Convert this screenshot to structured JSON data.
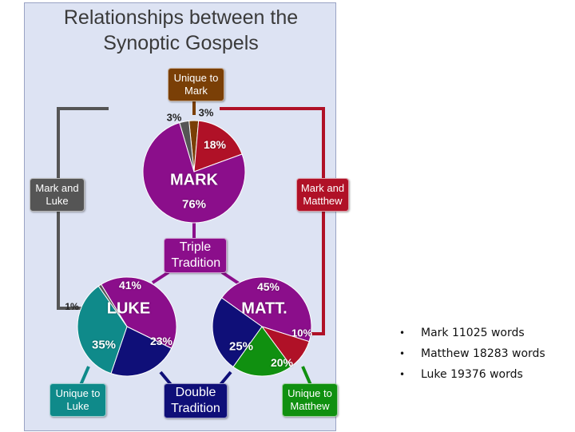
{
  "diagram": {
    "title_line1": "Relationships between the",
    "title_line2": "Synoptic Gospels",
    "colors": {
      "mark": "#8b0e8b",
      "mark_unique": "#7a3f06",
      "mark_luke": "#555555",
      "mark_matthew": "#b01127",
      "double": "#0f0f78",
      "luke_unique": "#0f8a8a",
      "matthew_unique": "#109010"
    },
    "boxes": {
      "unique_mark": "Unique to Mark",
      "mark_and_luke": "Mark and Luke",
      "mark_and_matthew": "Mark and Matthew",
      "triple_tradition": "Triple Tradition",
      "double_tradition": "Double Tradition",
      "unique_luke": "Unique to Luke",
      "unique_matthew": "Unique to Matthew"
    },
    "pies": {
      "mark": {
        "name": "MARK",
        "slices": [
          {
            "label": "3%",
            "value": 3,
            "kind": "mark_unique"
          },
          {
            "label": "18%",
            "value": 18,
            "kind": "mark_matthew"
          },
          {
            "label": "76%",
            "value": 76,
            "kind": "mark"
          },
          {
            "label": "3%",
            "value": 3,
            "kind": "mark_luke"
          }
        ]
      },
      "luke": {
        "name": "LUKE",
        "slices": [
          {
            "label": "41%",
            "value": 41,
            "kind": "mark"
          },
          {
            "label": "23%",
            "value": 23,
            "kind": "double"
          },
          {
            "label": "35%",
            "value": 35,
            "kind": "luke_unique"
          },
          {
            "label": "1%",
            "value": 1,
            "kind": "mark_luke"
          }
        ]
      },
      "matthew": {
        "name": "MATT.",
        "slices": [
          {
            "label": "45%",
            "value": 45,
            "kind": "mark"
          },
          {
            "label": "10%",
            "value": 10,
            "kind": "mark_matthew"
          },
          {
            "label": "20%",
            "value": 20,
            "kind": "matthew_unique"
          },
          {
            "label": "25%",
            "value": 25,
            "kind": "double"
          }
        ]
      }
    }
  },
  "facts": [
    "Mark 11025 words",
    "Matthew 18283 words",
    "Luke 19376 words"
  ]
}
